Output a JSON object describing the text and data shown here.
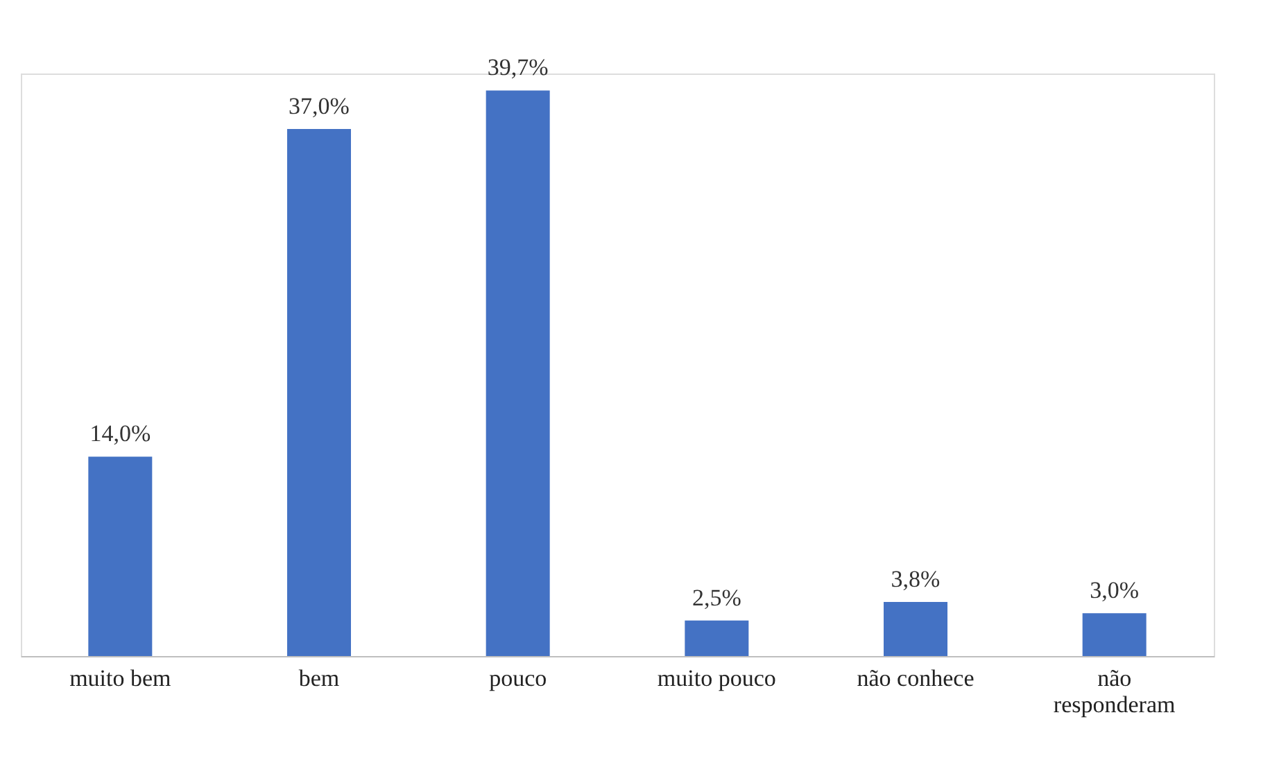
{
  "chart_data": {
    "type": "bar",
    "categories": [
      "muito bem",
      "bem",
      "pouco",
      "muito pouco",
      "não conhece",
      "não responderam"
    ],
    "values": [
      14.0,
      37.0,
      39.7,
      2.5,
      3.8,
      3.0
    ],
    "value_labels": [
      "14,0%",
      "37,0%",
      "39,7%",
      "2,5%",
      "3,8%",
      "3,0%"
    ],
    "color": "#4472c4",
    "grid": false
  }
}
